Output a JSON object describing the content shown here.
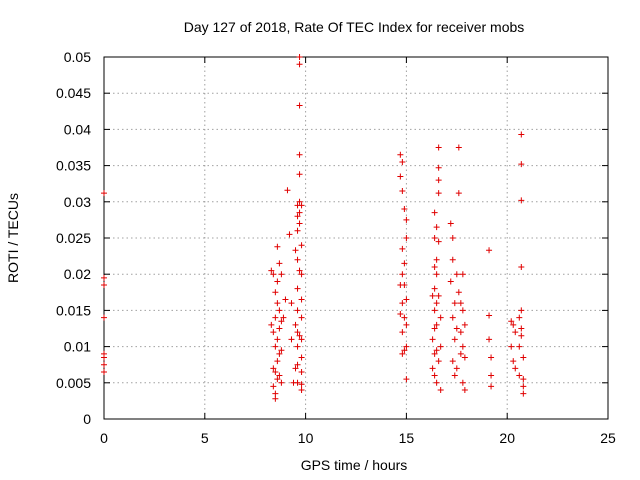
{
  "chart_data": {
    "type": "scatter",
    "title": "Day 127 of 2018, Rate Of TEC Index for receiver mobs",
    "xlabel": "GPS time / hours",
    "ylabel": "ROTI / TECUs",
    "xlim": [
      0,
      25
    ],
    "ylim": [
      0,
      0.05
    ],
    "xticks": [
      0,
      5,
      10,
      15,
      20,
      25
    ],
    "yticks": [
      0,
      0.005,
      0.01,
      0.015,
      0.02,
      0.025,
      0.03,
      0.035,
      0.04,
      0.045,
      0.05
    ],
    "xtick_labels": [
      "0",
      "5",
      "10",
      "15",
      "20",
      "25"
    ],
    "ytick_labels": [
      "0",
      "0.005",
      "0.01",
      "0.015",
      "0.02",
      "0.025",
      "0.03",
      "0.035",
      "0.04",
      "0.045",
      "0.05"
    ],
    "grid": true,
    "marker": "plus",
    "color": "#e00000",
    "series": [
      {
        "name": "ROTI",
        "x": [
          0.0,
          0.0,
          0.0,
          0.0,
          0.0,
          0.0,
          0.0,
          0.0,
          8.3,
          8.3,
          8.4,
          8.4,
          8.4,
          8.4,
          8.5,
          8.5,
          8.5,
          8.5,
          8.5,
          8.5,
          8.6,
          8.6,
          8.6,
          8.6,
          8.6,
          8.6,
          8.7,
          8.7,
          8.7,
          8.7,
          8.7,
          8.8,
          8.8,
          8.8,
          8.8,
          8.9,
          9.0,
          9.1,
          9.2,
          9.3,
          9.3,
          9.4,
          9.5,
          9.5,
          9.5,
          9.6,
          9.6,
          9.6,
          9.6,
          9.6,
          9.6,
          9.6,
          9.6,
          9.6,
          9.6,
          9.7,
          9.7,
          9.7,
          9.7,
          9.7,
          9.7,
          9.7,
          9.7,
          9.7,
          9.7,
          9.8,
          9.8,
          9.8,
          9.8,
          9.8,
          9.8,
          9.8,
          9.8,
          9.8,
          9.8,
          14.7,
          14.7,
          14.7,
          14.7,
          14.8,
          14.8,
          14.8,
          14.8,
          14.8,
          14.8,
          14.8,
          14.9,
          14.9,
          14.9,
          14.9,
          14.9,
          15.0,
          15.0,
          15.0,
          15.0,
          15.0,
          15.0,
          16.3,
          16.3,
          16.3,
          16.4,
          16.4,
          16.4,
          16.4,
          16.4,
          16.4,
          16.4,
          16.4,
          16.5,
          16.5,
          16.5,
          16.5,
          16.5,
          16.5,
          16.5,
          16.6,
          16.6,
          16.6,
          16.6,
          16.6,
          16.6,
          16.6,
          16.7,
          16.7,
          16.7,
          17.2,
          17.2,
          17.3,
          17.3,
          17.3,
          17.3,
          17.4,
          17.4,
          17.4,
          17.5,
          17.5,
          17.5,
          17.6,
          17.6,
          17.6,
          17.7,
          17.7,
          17.7,
          17.8,
          17.8,
          17.8,
          17.8,
          17.9,
          17.9,
          17.9,
          19.1,
          19.1,
          19.1,
          19.2,
          19.2,
          19.2,
          20.2,
          20.2,
          20.3,
          20.3,
          20.4,
          20.4,
          20.6,
          20.6,
          20.6,
          20.7,
          20.7,
          20.7,
          20.7,
          20.7,
          20.7,
          20.7,
          20.8,
          20.8,
          20.8,
          20.8
        ],
        "y": [
          0.0312,
          0.0195,
          0.0185,
          0.014,
          0.009,
          0.0085,
          0.0075,
          0.0065,
          0.0205,
          0.013,
          0.02,
          0.012,
          0.007,
          0.0045,
          0.0175,
          0.014,
          0.01,
          0.0065,
          0.0035,
          0.0028,
          0.0238,
          0.019,
          0.016,
          0.011,
          0.008,
          0.0055,
          0.0215,
          0.015,
          0.0125,
          0.009,
          0.006,
          0.02,
          0.0135,
          0.0095,
          0.005,
          0.014,
          0.0165,
          0.0316,
          0.0255,
          0.016,
          0.011,
          0.005,
          0.0233,
          0.013,
          0.007,
          0.0295,
          0.028,
          0.026,
          0.022,
          0.018,
          0.015,
          0.012,
          0.01,
          0.0075,
          0.005,
          0.05,
          0.049,
          0.0433,
          0.0365,
          0.0338,
          0.03,
          0.0285,
          0.027,
          0.0205,
          0.0115,
          0.0295,
          0.024,
          0.02,
          0.0165,
          0.014,
          0.011,
          0.0085,
          0.0065,
          0.0048,
          0.004,
          0.0365,
          0.0335,
          0.0185,
          0.0145,
          0.0355,
          0.0315,
          0.0235,
          0.02,
          0.016,
          0.012,
          0.009,
          0.029,
          0.0215,
          0.0185,
          0.014,
          0.0095,
          0.0275,
          0.025,
          0.0165,
          0.013,
          0.01,
          0.0055,
          0.017,
          0.011,
          0.007,
          0.0285,
          0.025,
          0.021,
          0.018,
          0.015,
          0.0125,
          0.009,
          0.006,
          0.0265,
          0.022,
          0.02,
          0.016,
          0.013,
          0.0095,
          0.005,
          0.0375,
          0.0347,
          0.033,
          0.0312,
          0.0245,
          0.017,
          0.008,
          0.014,
          0.01,
          0.004,
          0.027,
          0.019,
          0.025,
          0.022,
          0.014,
          0.008,
          0.016,
          0.011,
          0.006,
          0.02,
          0.0125,
          0.007,
          0.0375,
          0.0312,
          0.0175,
          0.016,
          0.012,
          0.009,
          0.02,
          0.015,
          0.01,
          0.005,
          0.013,
          0.0085,
          0.004,
          0.0233,
          0.0143,
          0.011,
          0.0085,
          0.006,
          0.0045,
          0.0135,
          0.01,
          0.013,
          0.008,
          0.012,
          0.007,
          0.014,
          0.01,
          0.006,
          0.0393,
          0.0352,
          0.0302,
          0.021,
          0.015,
          0.0125,
          0.0115,
          0.0085,
          0.0055,
          0.0045,
          0.0035
        ]
      }
    ]
  }
}
